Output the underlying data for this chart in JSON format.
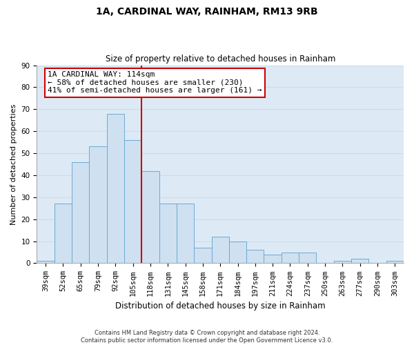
{
  "title": "1A, CARDINAL WAY, RAINHAM, RM13 9RB",
  "subtitle": "Size of property relative to detached houses in Rainham",
  "xlabel": "Distribution of detached houses by size in Rainham",
  "ylabel": "Number of detached properties",
  "categories": [
    "39sqm",
    "52sqm",
    "65sqm",
    "79sqm",
    "92sqm",
    "105sqm",
    "118sqm",
    "131sqm",
    "145sqm",
    "158sqm",
    "171sqm",
    "184sqm",
    "197sqm",
    "211sqm",
    "224sqm",
    "237sqm",
    "250sqm",
    "263sqm",
    "277sqm",
    "290sqm",
    "303sqm"
  ],
  "values": [
    1,
    27,
    46,
    53,
    68,
    56,
    42,
    27,
    27,
    7,
    12,
    10,
    6,
    4,
    5,
    5,
    0,
    1,
    2,
    0,
    1
  ],
  "bar_color": "#cfe0f0",
  "bar_edge_color": "#6aaad4",
  "vline_x": 6.0,
  "vline_color": "#cc0000",
  "annotation_line1": "1A CARDINAL WAY: 114sqm",
  "annotation_line2": "← 58% of detached houses are smaller (230)",
  "annotation_line3": "41% of semi-detached houses are larger (161) →",
  "annotation_box_color": "#ffffff",
  "annotation_box_edge": "#cc0000",
  "ylim": [
    0,
    90
  ],
  "yticks": [
    0,
    10,
    20,
    30,
    40,
    50,
    60,
    70,
    80,
    90
  ],
  "grid_color": "#c8dcea",
  "footer": "Contains HM Land Registry data © Crown copyright and database right 2024.\nContains public sector information licensed under the Open Government Licence v3.0.",
  "bg_color": "#ddeaf5",
  "fig_bg_color": "#ffffff",
  "title_fontsize": 10,
  "subtitle_fontsize": 8.5,
  "xlabel_fontsize": 8.5,
  "ylabel_fontsize": 8,
  "tick_fontsize": 7.5,
  "annot_fontsize": 8,
  "footer_fontsize": 6
}
